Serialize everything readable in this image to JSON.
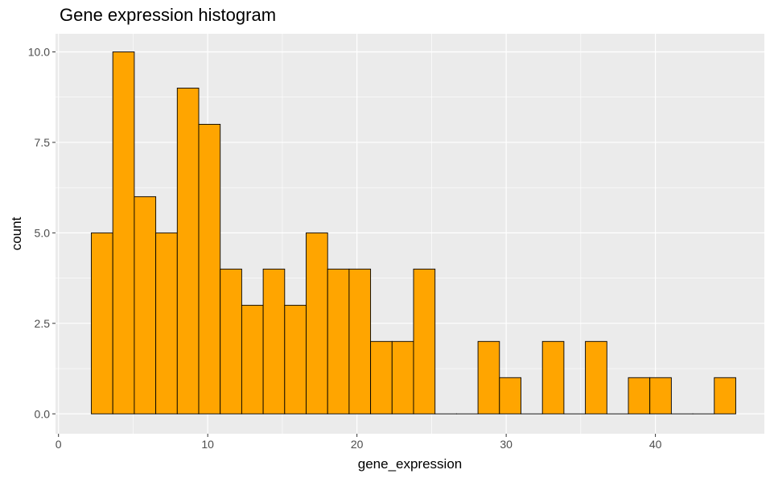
{
  "chart_data": {
    "type": "bar",
    "title": "Gene expression histogram",
    "xlabel": "gene_expression",
    "ylabel": "count",
    "xlim": [
      -0.2,
      47.3
    ],
    "ylim": [
      -0.55,
      10.5
    ],
    "x_ticks": [
      0,
      10,
      20,
      30,
      40
    ],
    "x_tick_labels": [
      "0",
      "10",
      "20",
      "30",
      "40"
    ],
    "y_ticks": [
      0,
      2.5,
      5,
      7.5,
      10
    ],
    "y_tick_labels": [
      "0.0",
      "2.5",
      "5.0",
      "7.5",
      "10.0"
    ],
    "bin_start": 2.2,
    "bin_width": 1.4395,
    "values": [
      5,
      10,
      6,
      5,
      9,
      8,
      4,
      3,
      4,
      3,
      5,
      4,
      4,
      2,
      2,
      4,
      0,
      0,
      2,
      1,
      0,
      2,
      0,
      2,
      0,
      1,
      1,
      0,
      0,
      1
    ],
    "grid": true,
    "bar_fill": "#FFA500",
    "bar_stroke": "#000000",
    "panel_background": "#EBEBEB",
    "grid_color": "#FFFFFF"
  }
}
